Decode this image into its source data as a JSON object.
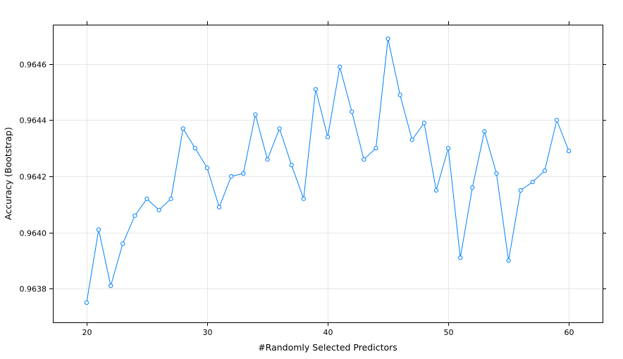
{
  "chart_data": {
    "type": "line",
    "xlabel": "#Randomly Selected Predictors",
    "ylabel": "Accuracy (Bootstrap)",
    "xlim": [
      17.2,
      62.8
    ],
    "ylim": [
      0.96368,
      0.96474
    ],
    "x_ticks": [
      20,
      30,
      40,
      50,
      60
    ],
    "x_tick_labels": [
      "20",
      "30",
      "40",
      "50",
      "60"
    ],
    "y_ticks": [
      0.9638,
      0.964,
      0.9642,
      0.9644,
      0.9646
    ],
    "y_tick_labels": [
      "0.9638",
      "0.9640",
      "0.9642",
      "0.9644",
      "0.9646"
    ],
    "grid": true,
    "series_color": "#0080ff",
    "marker": "open-circle",
    "series": [
      {
        "x": [
          20,
          21,
          22,
          23,
          24,
          25,
          26,
          27,
          28,
          29,
          30,
          31,
          32,
          33,
          34,
          35,
          36,
          37,
          38,
          39,
          40,
          41,
          42,
          43,
          44,
          45,
          46,
          47,
          48,
          49,
          50,
          51,
          52,
          53,
          54,
          55,
          56,
          57,
          58,
          59,
          60
        ],
        "values": [
          0.96375,
          0.96401,
          0.96381,
          0.96396,
          0.96406,
          0.96412,
          0.96408,
          0.96412,
          0.96437,
          0.9643,
          0.96423,
          0.96409,
          0.9642,
          0.96421,
          0.96442,
          0.96426,
          0.96437,
          0.96424,
          0.96412,
          0.96451,
          0.96434,
          0.96459,
          0.96443,
          0.96426,
          0.9643,
          0.96469,
          0.96449,
          0.96433,
          0.96439,
          0.96415,
          0.9643,
          0.96391,
          0.96416,
          0.96436,
          0.96421,
          0.9639,
          0.96415,
          0.96418,
          0.96422,
          0.9644,
          0.96429
        ]
      }
    ]
  }
}
